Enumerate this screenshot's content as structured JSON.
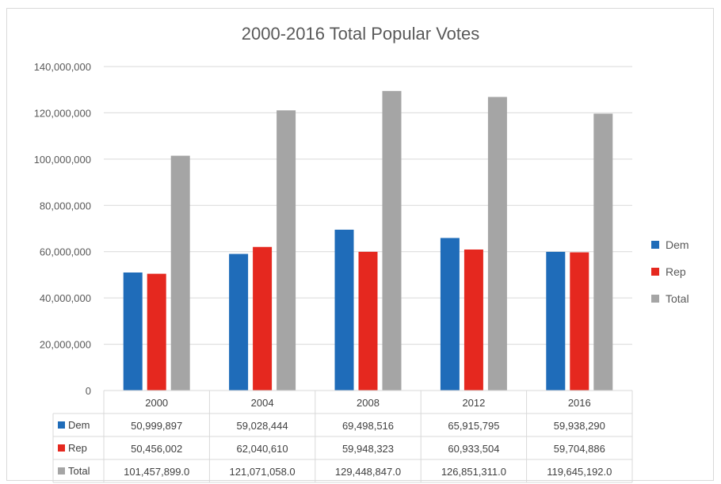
{
  "chart_data": {
    "type": "bar",
    "title": "2000-2016 Total Popular Votes",
    "categories": [
      "2000",
      "2004",
      "2008",
      "2012",
      "2016"
    ],
    "series": [
      {
        "name": "Dem",
        "color": "#1f6cb9",
        "values": [
          50999897,
          59028444,
          69498516,
          65915795,
          59938290
        ],
        "labels": [
          "50,999,897",
          "59,028,444",
          "69,498,516",
          "65,915,795",
          "59,938,290"
        ]
      },
      {
        "name": "Rep",
        "color": "#e5281f",
        "values": [
          50456002,
          62040610,
          59948323,
          60933504,
          59704886
        ],
        "labels": [
          "50,456,002",
          "62,040,610",
          "59,948,323",
          "60,933,504",
          "59,704,886"
        ]
      },
      {
        "name": "Total",
        "color": "#a5a5a5",
        "values": [
          101457899,
          121071058,
          129448847,
          126851311,
          119645192
        ],
        "labels": [
          "101,457,899.0",
          "121,071,058.0",
          "129,448,847.0",
          "126,851,311.0",
          "119,645,192.0"
        ]
      }
    ],
    "ylim": [
      0,
      140000000
    ],
    "yticks": [
      "0",
      "20,000,000",
      "40,000,000",
      "60,000,000",
      "80,000,000",
      "100,000,000",
      "120,000,000",
      "140,000,000"
    ],
    "grid": true,
    "legend": "right",
    "data_table": true
  }
}
